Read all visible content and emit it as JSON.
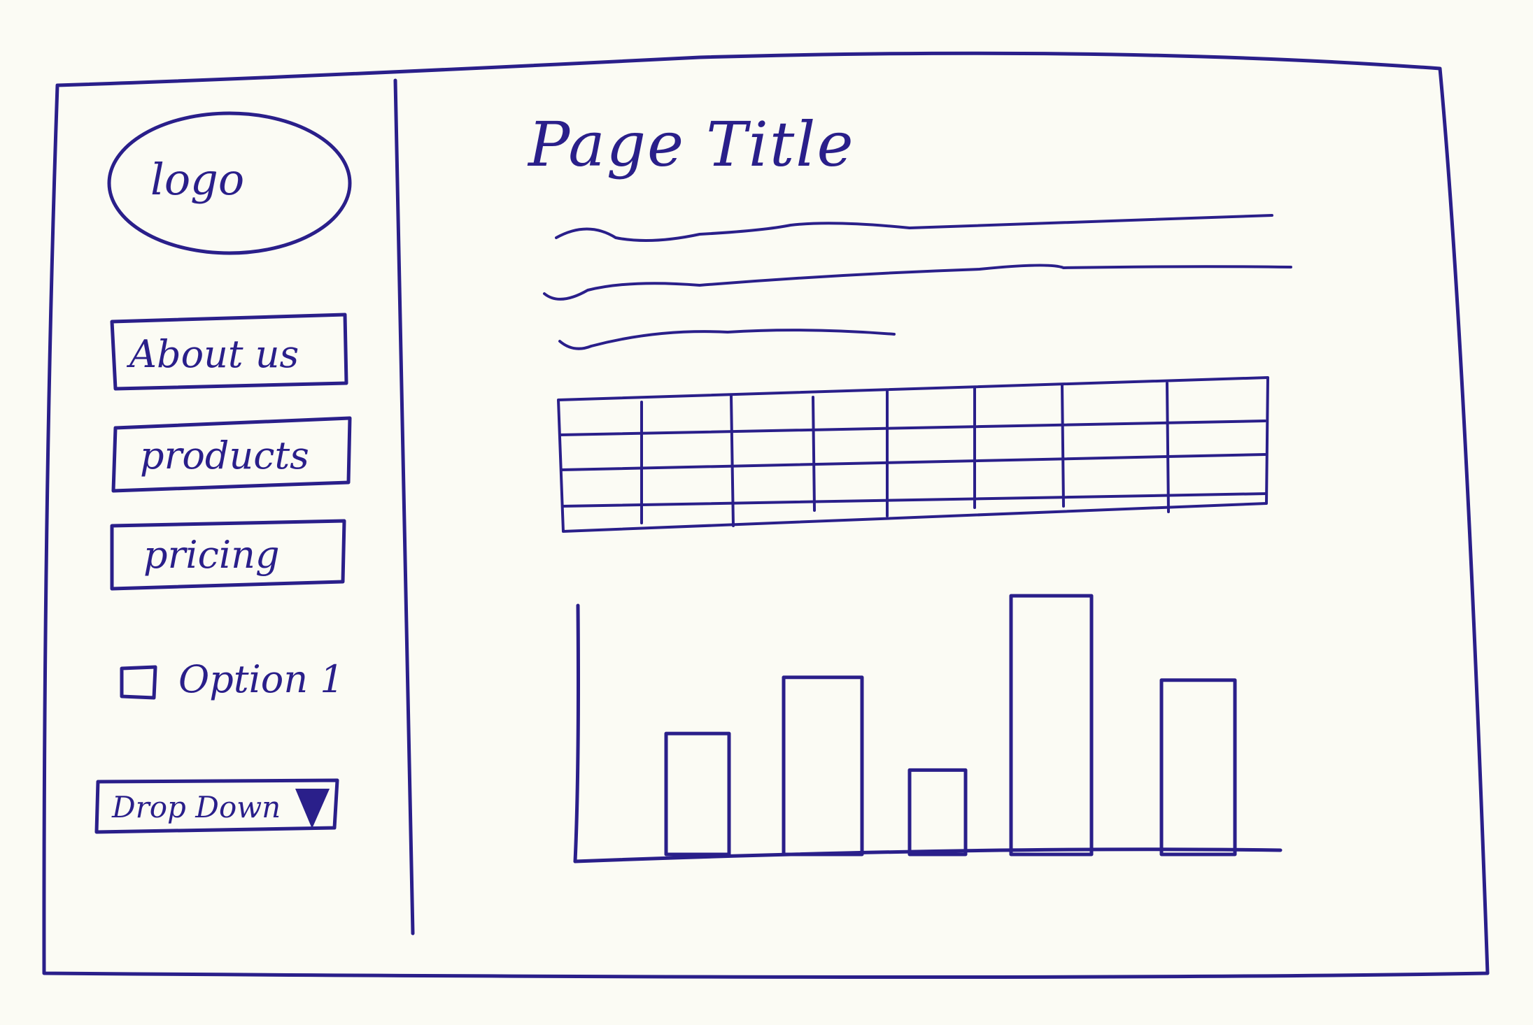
{
  "sidebar": {
    "logo_text": "logo",
    "nav_items": [
      {
        "label": "About us"
      },
      {
        "label": "products"
      },
      {
        "label": "pricing"
      }
    ],
    "option": {
      "label": "Option 1",
      "checked": false
    },
    "dropdown": {
      "label": "Drop Down"
    }
  },
  "main": {
    "title": "Page Title",
    "paragraph_lines": 3,
    "table": {
      "rows": 4,
      "columns": 8
    }
  },
  "chart_data": {
    "type": "bar",
    "categories": [
      "",
      "",
      "",
      "",
      ""
    ],
    "values": [
      43,
      63,
      30,
      92,
      62
    ],
    "title": "",
    "xlabel": "",
    "ylabel": "",
    "ylim": [
      0,
      100
    ],
    "grid": false
  },
  "colors": {
    "ink": "#2a1f8a",
    "paper": "#fbfbf4"
  }
}
